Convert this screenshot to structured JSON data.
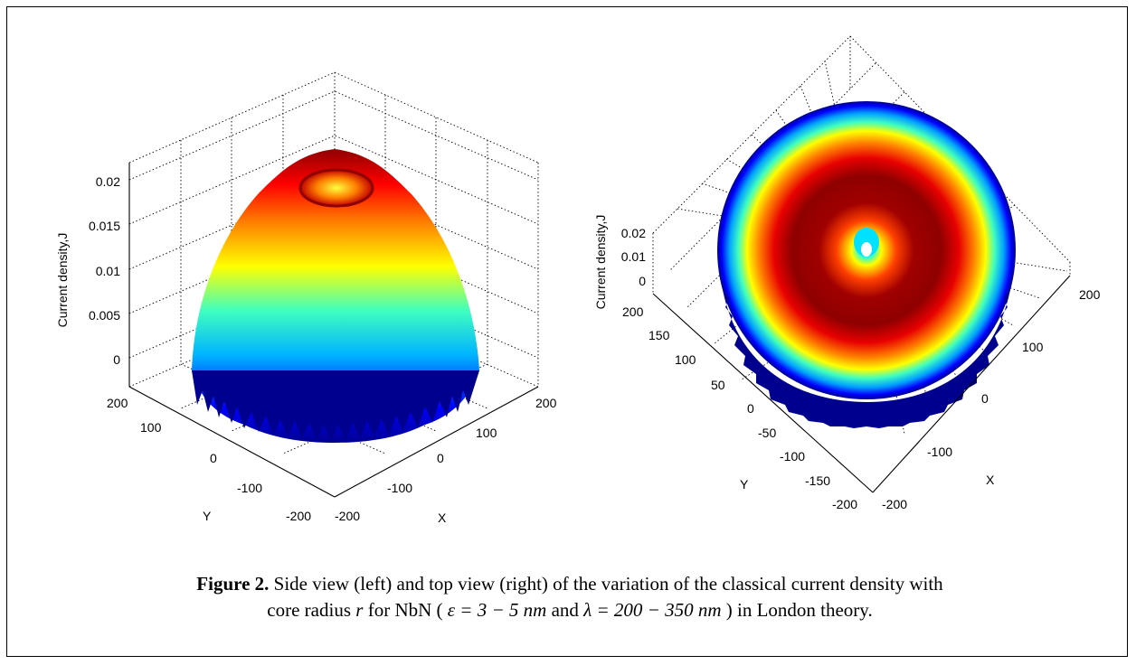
{
  "figure": {
    "label": "Figure 2.",
    "caption_line1": "Side view (left) and top view (right) of the variation of the classical current density with",
    "caption_line2_pre": "core radius",
    "caption_r": "r",
    "caption_line2_mid": "for NbN (",
    "caption_eps": "ε = 3 − 5 nm",
    "caption_and": "and",
    "caption_lambda": "λ = 200 − 350 nm",
    "caption_line2_post": ") in London theory."
  },
  "chart_data": [
    {
      "type": "surface",
      "view": "side",
      "zlabel": "Current density,J",
      "xlabel": "X",
      "ylabel": "Y",
      "zticks": [
        "0",
        "0.005",
        "0.01",
        "0.015",
        "0.02"
      ],
      "xticks": [
        "-200",
        "-100",
        "0",
        "100",
        "200"
      ],
      "yticks": [
        "-200",
        "-100",
        "0",
        "100",
        "200"
      ],
      "zlim": [
        0,
        0.022
      ],
      "xlim": [
        -200,
        200
      ],
      "ylim": [
        -200,
        200
      ],
      "colormap": "jet",
      "grid": true
    },
    {
      "type": "surface",
      "view": "top",
      "zlabel": "Current density,J",
      "xlabel": "X",
      "ylabel": "Y",
      "zticks": [
        "0",
        "0.01",
        "0.02"
      ],
      "xticks": [
        "-200",
        "-100",
        "0",
        "100",
        "200"
      ],
      "yticks": [
        "-200",
        "-150",
        "-100",
        "-50",
        "0",
        "50",
        "100",
        "150",
        "200"
      ],
      "zlim": [
        0,
        0.02
      ],
      "xlim": [
        -200,
        200
      ],
      "ylim": [
        -200,
        200
      ],
      "colormap": "jet",
      "grid": true
    }
  ]
}
